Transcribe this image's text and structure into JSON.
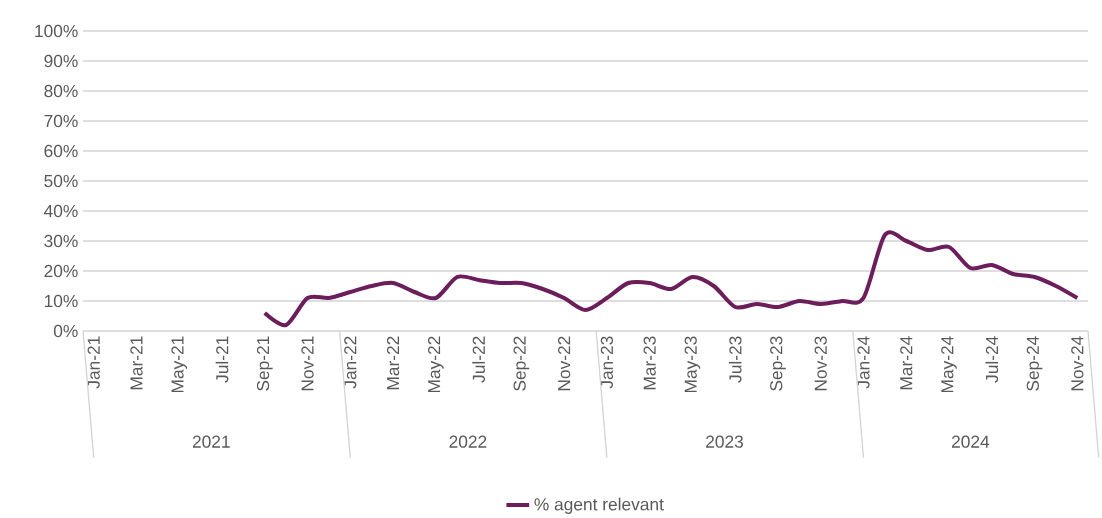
{
  "chart_data": {
    "type": "line",
    "categories": [
      "Jan-21",
      null,
      "Mar-21",
      null,
      "May-21",
      null,
      "Jul-21",
      null,
      "Sep-21",
      null,
      "Nov-21",
      null,
      "Jan-22",
      null,
      "Mar-22",
      null,
      "May-22",
      null,
      "Jul-22",
      null,
      "Sep-22",
      null,
      "Nov-22",
      null,
      "Jan-23",
      null,
      "Mar-23",
      null,
      "May-23",
      null,
      "Jul-23",
      null,
      "Sep-23",
      null,
      "Nov-23",
      null,
      "Jan-24",
      null,
      "Mar-24",
      null,
      "May-24",
      null,
      "Jul-24",
      null,
      "Sep-24",
      null,
      "Nov-24"
    ],
    "series": [
      {
        "name": "% agent relevant",
        "color": "#6b1d5c",
        "values": [
          null,
          null,
          null,
          null,
          null,
          null,
          null,
          null,
          6,
          2,
          11,
          11,
          13,
          15,
          16,
          13,
          11,
          18,
          17,
          16,
          16,
          14,
          11,
          7,
          11,
          16,
          16,
          14,
          18,
          15,
          8,
          9,
          8,
          10,
          9,
          10,
          11,
          32,
          30,
          27,
          28,
          21,
          22,
          19,
          18,
          15,
          11
        ]
      }
    ],
    "ylim": [
      0,
      100
    ],
    "yticks": [
      {
        "value": 0,
        "label": "0%"
      },
      {
        "value": 10,
        "label": "10%"
      },
      {
        "value": 20,
        "label": "20%"
      },
      {
        "value": 30,
        "label": "30%"
      },
      {
        "value": 40,
        "label": "40%"
      },
      {
        "value": 50,
        "label": "50%"
      },
      {
        "value": 60,
        "label": "60%"
      },
      {
        "value": 70,
        "label": "70%"
      },
      {
        "value": 80,
        "label": "80%"
      },
      {
        "value": 90,
        "label": "90%"
      },
      {
        "value": 100,
        "label": "100%"
      }
    ],
    "grid": "y",
    "legend": "bottom",
    "marker": "none",
    "line_style": "solid",
    "annotations": [
      "2021",
      "2022",
      "2023",
      "2024"
    ]
  }
}
